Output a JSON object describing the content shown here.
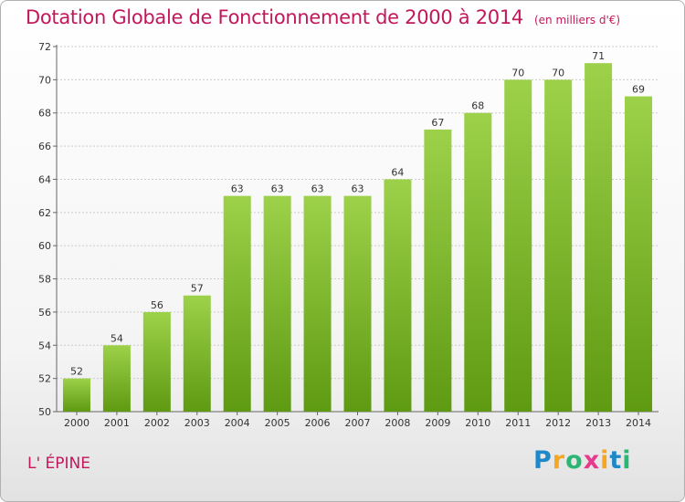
{
  "title": "Dotation Globale de Fonctionnement de 2000 à 2014",
  "unit": "(en milliers d'€)",
  "commune": "L' ÉPINE",
  "logo": {
    "text": "Proxiti",
    "letters": [
      {
        "ch": "P",
        "color": "#1e88c8"
      },
      {
        "ch": "r",
        "color": "#f5a623"
      },
      {
        "ch": "o",
        "color": "#2bb673"
      },
      {
        "ch": "x",
        "color": "#e63b8c"
      },
      {
        "ch": "i",
        "color": "#f5a623"
      },
      {
        "ch": "t",
        "color": "#1e88c8"
      },
      {
        "ch": "i",
        "color": "#2bb673"
      }
    ]
  },
  "colors": {
    "bar_top": "#9dd14a",
    "bar_bottom": "#5e9a12",
    "title": "#c2185b",
    "grid": "#cccccc"
  },
  "chart_data": {
    "type": "bar",
    "categories": [
      "2000",
      "2001",
      "2002",
      "2003",
      "2004",
      "2005",
      "2006",
      "2007",
      "2008",
      "2009",
      "2010",
      "2011",
      "2012",
      "2013",
      "2014"
    ],
    "values": [
      52,
      54,
      56,
      57,
      63,
      63,
      63,
      63,
      64,
      67,
      68,
      70,
      70,
      71,
      69
    ],
    "ylim": [
      50,
      72
    ],
    "yticks": [
      50,
      52,
      54,
      56,
      58,
      60,
      62,
      64,
      66,
      68,
      70,
      72
    ],
    "grid": true,
    "data_labels": true
  }
}
